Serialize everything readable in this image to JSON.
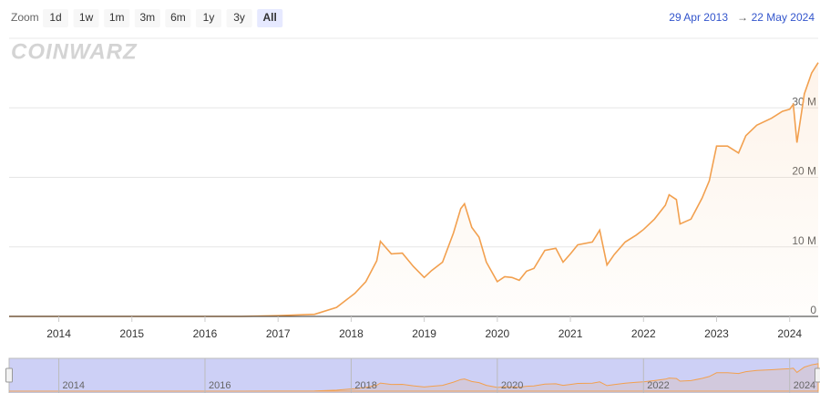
{
  "chart_data": {
    "type": "area",
    "range_selector": {
      "label": "Zoom",
      "buttons": [
        "1d",
        "1w",
        "1m",
        "3m",
        "6m",
        "1y",
        "3y",
        "All"
      ],
      "selected": 7
    },
    "range": {
      "from": "29 Apr 2013",
      "arrow": "→",
      "to": "22 May 2024"
    },
    "watermark": "COINWARZ",
    "x": [
      2013.32,
      2015.0,
      2016.5,
      2017.0,
      2017.5,
      2017.8,
      2017.95,
      2018.05,
      2018.2,
      2018.35,
      2018.4,
      2018.55,
      2018.7,
      2018.85,
      2019.0,
      2019.1,
      2019.25,
      2019.4,
      2019.5,
      2019.55,
      2019.65,
      2019.75,
      2019.85,
      2020.0,
      2020.1,
      2020.2,
      2020.3,
      2020.4,
      2020.5,
      2020.65,
      2020.8,
      2020.9,
      2021.0,
      2021.1,
      2021.3,
      2021.4,
      2021.5,
      2021.6,
      2021.75,
      2021.9,
      2022.0,
      2022.15,
      2022.3,
      2022.35,
      2022.45,
      2022.5,
      2022.65,
      2022.8,
      2022.9,
      2023.0,
      2023.15,
      2023.3,
      2023.4,
      2023.55,
      2023.75,
      2023.9,
      2024.0,
      2024.05,
      2024.1,
      2024.2,
      2024.3,
      2024.39
    ],
    "values": [
      0,
      0,
      0,
      0.1,
      0.3,
      1.3,
      2.5,
      3.3,
      5,
      8,
      10.8,
      9,
      9.1,
      7.2,
      5.6,
      6.6,
      7.8,
      12,
      15.5,
      16.2,
      12.8,
      11.4,
      7.8,
      5,
      5.7,
      5.6,
      5.2,
      6.5,
      6.9,
      9.5,
      9.8,
      7.8,
      9,
      10.3,
      10.7,
      12.4,
      7.4,
      8.9,
      10.7,
      11.7,
      12.5,
      14,
      16,
      17.5,
      16.8,
      13.3,
      14,
      17,
      19.5,
      24.5,
      24.5,
      23.5,
      26,
      27.5,
      28.5,
      29.5,
      29.8,
      30.5,
      25,
      32,
      35,
      36.5
    ],
    "color": "#f2a04f",
    "xlim": [
      2013.32,
      2024.39
    ],
    "xticks": [
      2014,
      2015,
      2016,
      2017,
      2018,
      2019,
      2020,
      2021,
      2022,
      2023,
      2024
    ],
    "ylim": [
      0,
      40
    ],
    "yticks": [
      0,
      {
        "value": 10,
        "label": "10 M"
      },
      {
        "value": 20,
        "label": "20 M"
      },
      {
        "value": 30,
        "label": "30 M"
      }
    ],
    "grid": true,
    "navigator_xticks": [
      2014,
      2016,
      2018,
      2020,
      2022,
      2024
    ]
  }
}
